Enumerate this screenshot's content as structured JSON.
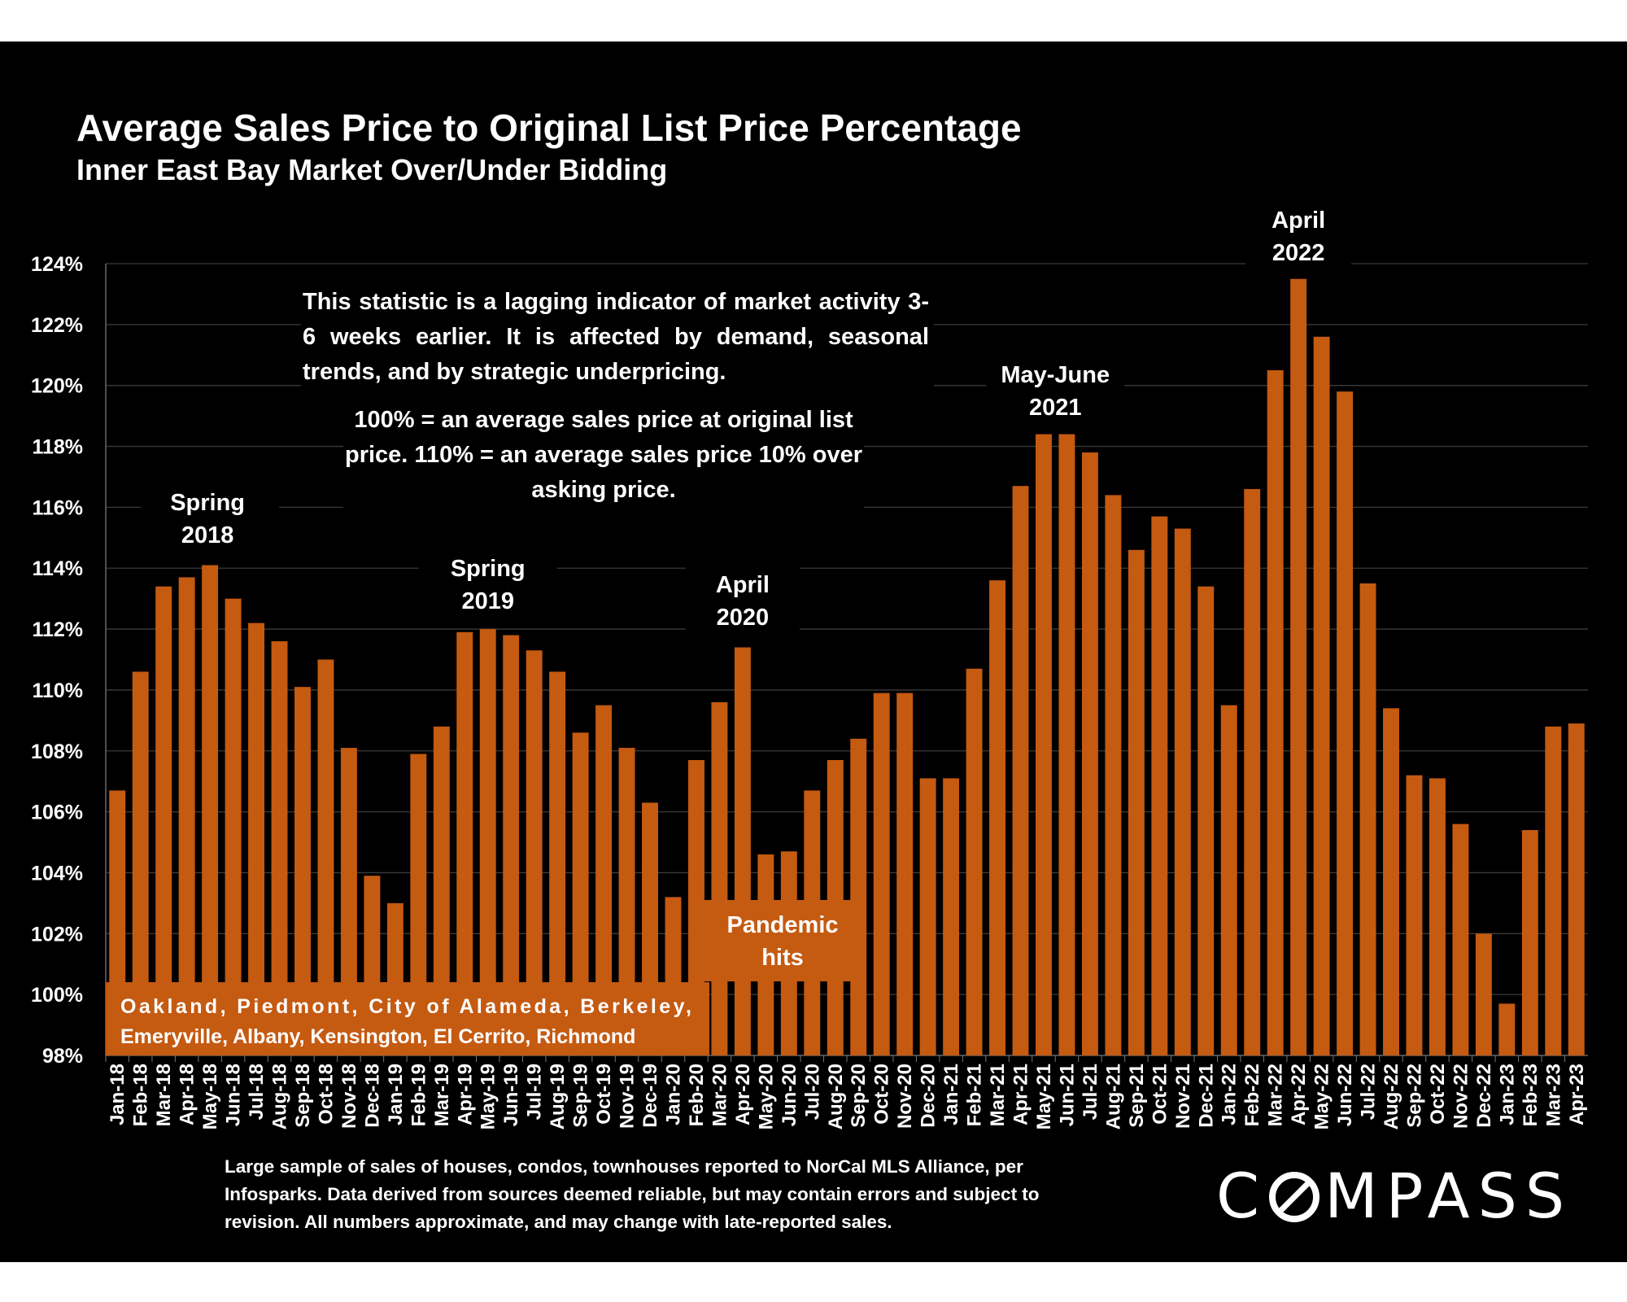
{
  "header": {
    "title": "Average Sales Price to Original List Price Percentage",
    "subtitle": "Inner East Bay Market Over/Under Bidding"
  },
  "notes": {
    "lagging": "This statistic is a lagging indicator of market activity 3-6 weeks earlier. It is affected by demand, seasonal trends, and by strategic underpricing.",
    "definition": "100% = an average sales price at original list price. 110% = an average sales price 10% over asking price."
  },
  "footnote": "Large sample of sales of houses, condos, townhouses reported to NorCal MLS Alliance, per Infosparks. Data derived from sources deemed reliable, but may contain errors and subject to revision. All numbers approximate, and may change with late-reported sales.",
  "logo": {
    "text": "COMPASS"
  },
  "colors": {
    "background": "#000000",
    "bar": "#c55a11",
    "text": "#ffffff",
    "grid": "#3a3a3a"
  },
  "chart_data": {
    "type": "bar",
    "title": "Average Sales Price to Original List Price Percentage",
    "subtitle": "Inner East Bay Market Over/Under Bidding",
    "xlabel": "",
    "ylabel": "",
    "ylim": [
      98,
      124
    ],
    "yticks": [
      98,
      100,
      102,
      104,
      106,
      108,
      110,
      112,
      114,
      116,
      118,
      120,
      122,
      124
    ],
    "ytick_labels": [
      "98%",
      "100%",
      "102%",
      "104%",
      "106%",
      "108%",
      "110%",
      "112%",
      "114%",
      "116%",
      "118%",
      "120%",
      "122%",
      "124%"
    ],
    "grid": true,
    "categories": [
      "Jan-18",
      "Feb-18",
      "Mar-18",
      "Apr-18",
      "May-18",
      "Jun-18",
      "Jul-18",
      "Aug-18",
      "Sep-18",
      "Oct-18",
      "Nov-18",
      "Dec-18",
      "Jan-19",
      "Feb-19",
      "Mar-19",
      "Apr-19",
      "May-19",
      "Jun-19",
      "Jul-19",
      "Aug-19",
      "Sep-19",
      "Oct-19",
      "Nov-19",
      "Dec-19",
      "Jan-20",
      "Feb-20",
      "Mar-20",
      "Apr-20",
      "May-20",
      "Jun-20",
      "Jul-20",
      "Aug-20",
      "Sep-20",
      "Oct-20",
      "Nov-20",
      "Dec-20",
      "Jan-21",
      "Feb-21",
      "Mar-21",
      "Apr-21",
      "May-21",
      "Jun-21",
      "Jul-21",
      "Aug-21",
      "Sep-21",
      "Oct-21",
      "Nov-21",
      "Dec-21",
      "Jan-22",
      "Feb-22",
      "Mar-22",
      "Apr-22",
      "May-22",
      "Jun-22",
      "Jul-22",
      "Aug-22",
      "Sep-22",
      "Oct-22",
      "Nov-22",
      "Dec-22",
      "Jan-23",
      "Feb-23",
      "Mar-23",
      "Apr-23"
    ],
    "values": [
      106.7,
      110.6,
      113.4,
      113.7,
      114.1,
      113.0,
      112.2,
      111.6,
      110.1,
      111.0,
      108.1,
      103.9,
      103.0,
      107.9,
      108.8,
      111.9,
      112.0,
      111.8,
      111.3,
      110.6,
      108.6,
      109.5,
      108.1,
      106.3,
      103.2,
      107.7,
      109.6,
      111.4,
      104.6,
      104.7,
      106.7,
      107.7,
      108.4,
      109.9,
      109.9,
      107.1,
      107.1,
      110.7,
      113.6,
      116.7,
      118.4,
      118.4,
      117.8,
      116.4,
      114.6,
      115.7,
      115.3,
      113.4,
      109.5,
      116.6,
      120.5,
      123.5,
      121.6,
      119.8,
      113.5,
      109.4,
      107.2,
      107.1,
      105.6,
      102.0,
      99.7,
      105.4,
      108.8,
      108.9
    ],
    "annotations": [
      {
        "text": [
          "Spring",
          "2018"
        ],
        "index": 4
      },
      {
        "text": [
          "Spring",
          "2019"
        ],
        "index": 16
      },
      {
        "text": [
          "April",
          "2020"
        ],
        "index": 27
      },
      {
        "text": [
          "May-June",
          "2021"
        ],
        "index": 40.5
      },
      {
        "text": [
          "April",
          "2022"
        ],
        "index": 51
      },
      {
        "text": [
          "Pandemic",
          "hits"
        ],
        "index": 28.5
      },
      {
        "text": [
          "Oakland, Piedmont, City of Alameda, Berkeley,",
          "Emeryville, Albany, Kensington, El Cerrito, Richmond"
        ],
        "index": 0
      }
    ]
  }
}
